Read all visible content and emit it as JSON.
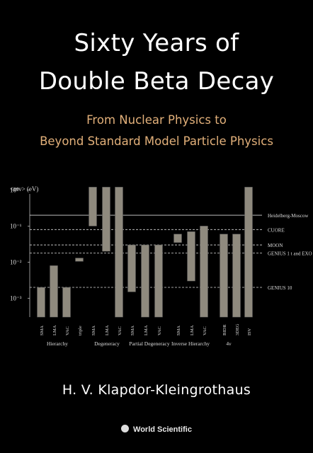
{
  "title_line1": "Sixty Years of",
  "title_line2": "Double Beta Decay",
  "subtitle_line1": "From Nuclear Physics to",
  "subtitle_line2": "Beyond Standard Model Particle Physics",
  "author": "H. V. Klapdor-Kleingrothaus",
  "publisher": "World Scientific",
  "publisher_icon": "globe-logo-icon",
  "colors": {
    "background": "#000000",
    "title": "#ffffff",
    "subtitle": "#e2b07a",
    "bars": "#8f8a7e"
  },
  "chart_data": {
    "type": "bar",
    "ylabel": "<mv> (eV)",
    "yscale": "log",
    "ylim": [
      0.0003,
      1.6
    ],
    "yticks": [
      {
        "value": 1,
        "label": "10⁰"
      },
      {
        "value": 0.1,
        "label": "10⁻¹"
      },
      {
        "value": 0.01,
        "label": "10⁻²"
      },
      {
        "value": 0.001,
        "label": "10⁻³"
      }
    ],
    "bars": [
      {
        "label": "SMA",
        "low": 0.0003,
        "high": 0.002
      },
      {
        "label": "LMA",
        "low": 0.0003,
        "high": 0.008
      },
      {
        "label": "VAC",
        "low": 0.0003,
        "high": 0.002
      },
      {
        "label": "triple",
        "low": 0.0105,
        "high": 0.013
      },
      {
        "label": "SMA",
        "low": 0.1,
        "high": 1.2
      },
      {
        "label": "LMA",
        "low": 0.02,
        "high": 1.2
      },
      {
        "label": "VAC",
        "low": 0.0003,
        "high": 1.2
      },
      {
        "label": "SMA",
        "low": 0.0015,
        "high": 0.03
      },
      {
        "label": "LMA",
        "low": 0.0003,
        "high": 0.03
      },
      {
        "label": "VAC",
        "low": 0.0003,
        "high": 0.03
      },
      {
        "label": "SMA",
        "low": 0.035,
        "high": 0.06
      },
      {
        "label": "LMA",
        "low": 0.003,
        "high": 0.07
      },
      {
        "label": "VAC",
        "low": 0.0003,
        "high": 0.1
      },
      {
        "label": "BIDR",
        "low": 0.0003,
        "high": 0.06
      },
      {
        "label": "3DEG",
        "low": 0.0003,
        "high": 0.06
      },
      {
        "label": "ISV",
        "low": 0.0003,
        "high": 1.2
      }
    ],
    "groups": [
      "Hierarchy",
      "Degeneracy",
      "Partial Degeneracy",
      "Inverse Hierarchy",
      "4ν"
    ],
    "reference_lines": [
      {
        "label": "Heidelberg-Moscow",
        "value": 0.2,
        "style": "solid"
      },
      {
        "label": "CUORE",
        "value": 0.08,
        "style": "dashed"
      },
      {
        "label": "MOON",
        "value": 0.03,
        "style": "dashed"
      },
      {
        "label": "GENIUS 1 t and EXO 10t",
        "value": 0.018,
        "style": "dashed"
      },
      {
        "label": "GENIUS 10",
        "value": 0.002,
        "style": "dashed"
      }
    ],
    "grid": false
  }
}
